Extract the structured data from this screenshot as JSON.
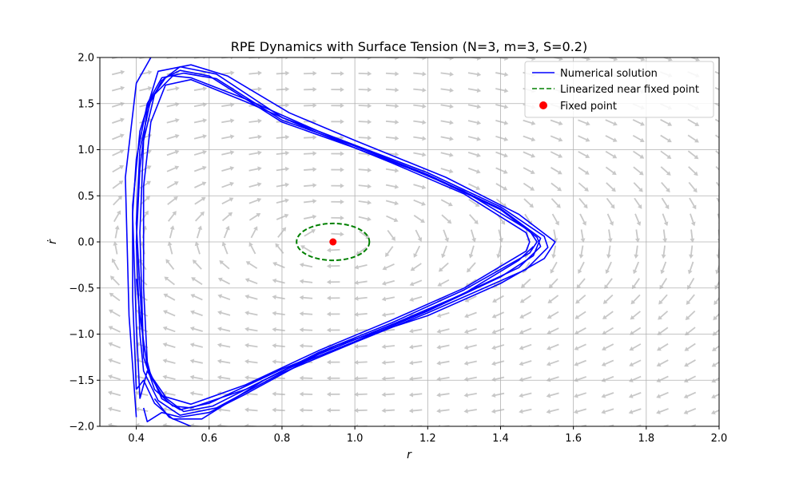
{
  "chart_data": {
    "type": "line",
    "title": "RPE Dynamics with Surface Tension (N=3, m=3, S=0.2)",
    "xlabel": "r",
    "ylabel": "ṙ",
    "xlim": [
      0.3,
      2.0
    ],
    "ylim": [
      -2.0,
      2.0
    ],
    "xticks": [
      "0.4",
      "0.6",
      "0.8",
      "1.0",
      "1.2",
      "1.4",
      "1.6",
      "1.8",
      "2.0"
    ],
    "yticks": [
      "−2.0",
      "−1.5",
      "−1.0",
      "−0.5",
      "0.0",
      "0.5",
      "1.0",
      "1.5",
      "2.0"
    ],
    "grid": true,
    "legend_position": "top-right",
    "colors": {
      "numerical": "#0000ff",
      "linearized": "#008000",
      "fixed_point": "#ff0000",
      "quiver": "#c8c8c8",
      "grid": "#b0b0b0"
    },
    "series": [
      {
        "name": "Numerical solution",
        "style": "solid",
        "color": "#0000ff",
        "cycles": [
          [
            [
              0.4,
              -1.9
            ],
            [
              0.38,
              -0.8
            ],
            [
              0.37,
              0.7
            ],
            [
              0.4,
              1.72
            ],
            [
              0.44,
              2.0
            ]
          ],
          [
            [
              0.42,
              -1.2
            ],
            [
              0.4,
              0.2
            ],
            [
              0.41,
              1.0
            ],
            [
              0.44,
              1.55
            ],
            [
              0.48,
              1.78
            ],
            [
              0.52,
              1.86
            ],
            [
              0.6,
              1.8
            ],
            [
              0.8,
              1.3
            ],
            [
              1.0,
              1.02
            ],
            [
              1.2,
              0.72
            ],
            [
              1.4,
              0.35
            ],
            [
              1.5,
              0.05
            ],
            [
              1.51,
              -0.05
            ],
            [
              1.45,
              -0.28
            ],
            [
              1.2,
              -0.74
            ],
            [
              1.0,
              -1.06
            ],
            [
              0.8,
              -1.38
            ],
            [
              0.6,
              -1.75
            ],
            [
              0.52,
              -1.82
            ],
            [
              0.47,
              -1.7
            ],
            [
              0.43,
              -1.35
            ],
            [
              0.41,
              -0.8
            ],
            [
              0.4,
              -0.4
            ]
          ],
          [
            [
              0.41,
              -1.0
            ],
            [
              0.4,
              0.0
            ],
            [
              0.41,
              0.8
            ],
            [
              0.43,
              1.45
            ],
            [
              0.47,
              1.75
            ],
            [
              0.52,
              1.9
            ],
            [
              0.62,
              1.82
            ],
            [
              0.8,
              1.35
            ],
            [
              1.0,
              1.05
            ],
            [
              1.2,
              0.75
            ],
            [
              1.4,
              0.38
            ],
            [
              1.52,
              0.06
            ],
            [
              1.53,
              -0.06
            ],
            [
              1.47,
              -0.3
            ],
            [
              1.2,
              -0.77
            ],
            [
              1.0,
              -1.09
            ],
            [
              0.8,
              -1.42
            ],
            [
              0.62,
              -1.8
            ],
            [
              0.52,
              -1.88
            ],
            [
              0.46,
              -1.72
            ],
            [
              0.42,
              -1.4
            ],
            [
              0.41,
              -1.0
            ]
          ],
          [
            [
              0.42,
              -1.25
            ],
            [
              0.41,
              0.1
            ],
            [
              0.42,
              1.1
            ],
            [
              0.45,
              1.6
            ],
            [
              0.5,
              1.8
            ],
            [
              0.55,
              1.78
            ],
            [
              0.7,
              1.55
            ],
            [
              0.9,
              1.2
            ],
            [
              1.1,
              0.88
            ],
            [
              1.3,
              0.55
            ],
            [
              1.48,
              0.12
            ],
            [
              1.5,
              0.0
            ],
            [
              1.48,
              -0.12
            ],
            [
              1.3,
              -0.52
            ],
            [
              1.1,
              -0.88
            ],
            [
              0.9,
              -1.2
            ],
            [
              0.7,
              -1.6
            ],
            [
              0.55,
              -1.8
            ],
            [
              0.5,
              -1.78
            ],
            [
              0.45,
              -1.6
            ],
            [
              0.42,
              -1.25
            ]
          ],
          [
            [
              0.43,
              -1.3
            ],
            [
              0.42,
              -0.5
            ],
            [
              0.42,
              0.6
            ],
            [
              0.44,
              1.3
            ],
            [
              0.48,
              1.7
            ],
            [
              0.55,
              1.76
            ],
            [
              0.7,
              1.52
            ],
            [
              0.9,
              1.18
            ],
            [
              1.1,
              0.86
            ],
            [
              1.3,
              0.52
            ],
            [
              1.47,
              0.1
            ],
            [
              1.48,
              0.0
            ],
            [
              1.47,
              -0.1
            ],
            [
              1.3,
              -0.5
            ],
            [
              1.1,
              -0.85
            ],
            [
              0.9,
              -1.18
            ],
            [
              0.7,
              -1.55
            ],
            [
              0.55,
              -1.76
            ],
            [
              0.48,
              -1.68
            ],
            [
              0.44,
              -1.45
            ],
            [
              0.43,
              -1.3
            ]
          ],
          [
            [
              0.4,
              -1.6
            ],
            [
              0.39,
              -0.6
            ],
            [
              0.39,
              0.4
            ],
            [
              0.41,
              1.2
            ],
            [
              0.46,
              1.85
            ],
            [
              0.55,
              1.92
            ],
            [
              0.65,
              1.8
            ],
            [
              0.82,
              1.4
            ],
            [
              1.0,
              1.1
            ],
            [
              1.25,
              0.7
            ],
            [
              1.45,
              0.3
            ],
            [
              1.55,
              0.0
            ],
            [
              1.52,
              -0.18
            ],
            [
              1.4,
              -0.45
            ],
            [
              1.2,
              -0.8
            ],
            [
              0.95,
              -1.12
            ],
            [
              0.75,
              -1.5
            ],
            [
              0.58,
              -1.92
            ],
            [
              0.5,
              -1.92
            ],
            [
              0.45,
              -1.75
            ],
            [
              0.42,
              -1.5
            ],
            [
              0.4,
              -1.6
            ]
          ],
          [
            [
              0.41,
              -1.7
            ],
            [
              0.4,
              -0.9
            ],
            [
              0.39,
              0.3
            ],
            [
              0.4,
              0.9
            ],
            [
              0.43,
              1.5
            ],
            [
              0.47,
              1.78
            ],
            [
              0.53,
              1.83
            ],
            [
              0.62,
              1.77
            ],
            [
              0.8,
              1.32
            ],
            [
              1.0,
              1.04
            ],
            [
              1.2,
              0.73
            ],
            [
              1.4,
              0.36
            ],
            [
              1.51,
              0.04
            ],
            [
              1.49,
              -0.15
            ],
            [
              1.4,
              -0.38
            ],
            [
              1.2,
              -0.75
            ],
            [
              1.0,
              -1.08
            ],
            [
              0.8,
              -1.4
            ],
            [
              0.61,
              -1.78
            ],
            [
              0.53,
              -1.84
            ],
            [
              0.47,
              -1.66
            ],
            [
              0.43,
              -1.4
            ],
            [
              0.41,
              -1.7
            ]
          ],
          [
            [
              0.42,
              -1.8
            ],
            [
              0.43,
              -1.95
            ],
            [
              0.47,
              -1.85
            ],
            [
              0.52,
              -1.9
            ],
            [
              0.6,
              -1.85
            ],
            [
              0.7,
              -1.65
            ],
            [
              0.9,
              -1.22
            ],
            [
              1.1,
              -0.9
            ],
            [
              1.3,
              -0.56
            ],
            [
              1.45,
              -0.2
            ],
            [
              1.49,
              -0.05
            ]
          ],
          [
            [
              0.45,
              -1.7
            ],
            [
              0.49,
              -1.9
            ],
            [
              0.55,
              -2.0
            ]
          ]
        ]
      },
      {
        "name": "Linearized near fixed point",
        "style": "dashed",
        "color": "#008000",
        "center": [
          0.94,
          0.0
        ],
        "radii": [
          0.1,
          0.2
        ]
      },
      {
        "name": "Fixed point",
        "style": "marker",
        "color": "#ff0000",
        "x": [
          0.94
        ],
        "y": [
          0.0
        ]
      }
    ],
    "legend": {
      "entries": [
        "Numerical solution",
        "Linearized near fixed point",
        "Fixed point"
      ]
    }
  }
}
